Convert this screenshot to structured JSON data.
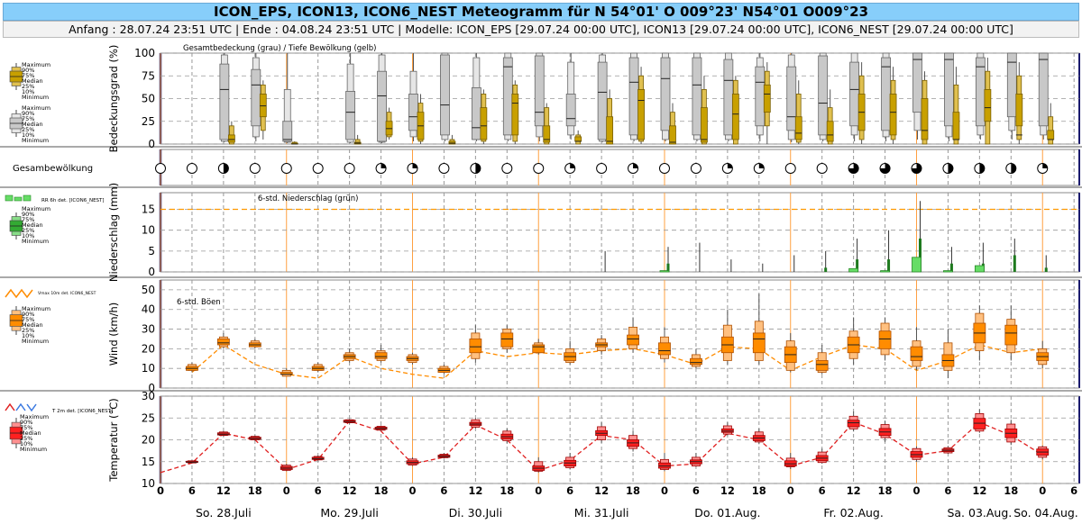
{
  "header": {
    "title": "ICON_EPS, ICON13, ICON6_NEST Meteogramm für N 54°01' O 009°23' N54°01 O009°23",
    "subtitle": "Anfang : 28.07.24 23:51 UTC | Ende : 04.08.24 23:51 UTC | Modelle: ICON_EPS [29.07.24 00:00 UTC], ICON13 [29.07.24 00:00 UTC], ICON6_NEST [29.07.24 00:00 UTC]"
  },
  "legend": {
    "box_labels": [
      "Maximum",
      "90%",
      "75%",
      "Median",
      "25%",
      "10%",
      "Minimum"
    ],
    "rr_label": "RR 6h det. [ICON6_NEST]",
    "vmax_label": "Vmax 10m det. ICON6_NEST",
    "t2m_label": "T 2m det. [ICON6_NEST]"
  },
  "time_axis": {
    "hour_ticks": [
      "0",
      "6",
      "12",
      "18",
      "0",
      "6",
      "12",
      "18",
      "0",
      "6",
      "12",
      "18",
      "0",
      "6",
      "12",
      "18",
      "0",
      "6",
      "12",
      "18",
      "0",
      "6",
      "12",
      "18",
      "0",
      "6",
      "12",
      "18",
      "0",
      "6",
      "12",
      "18"
    ],
    "days": [
      "So. 28.Juli",
      "Mo. 29.Juli",
      "Di. 30.Juli",
      "Mi. 31.Juli",
      "Do. 01.Aug.",
      "Fr. 02.Aug.",
      "Sa. 03.Aug.",
      "So. 04.Aug."
    ]
  },
  "colors": {
    "cloud_total": "#c8c8c8",
    "cloud_low": "#c8a000",
    "precip": "#33aa33",
    "wind": "#ff8c00",
    "temp": "#ff2020",
    "day_line": "#ffa040",
    "panel_border": "#1a1a6e"
  },
  "chart_data": [
    {
      "type": "box",
      "title": "Gesamtbedeckung (grau) / Tiefe Bewölkung (gelb)",
      "ylabel": "Bedeckungsgrad (%)",
      "ylim": [
        0,
        100
      ],
      "yticks": [
        0,
        25,
        50,
        75,
        100
      ],
      "x_hours": [
        12,
        18,
        24,
        36,
        42,
        48,
        54,
        60,
        66,
        72,
        78,
        84,
        90,
        96,
        102,
        108,
        114,
        120,
        126,
        132,
        138,
        144,
        150,
        156,
        162,
        168
      ],
      "series": [
        {
          "name": "Gesamtbedeckung",
          "min": [
            2,
            3,
            1,
            1,
            1,
            3,
            3,
            3,
            3,
            3,
            5,
            2,
            3,
            3,
            3,
            3,
            3,
            2,
            3,
            3,
            3,
            5,
            3,
            5,
            5,
            5
          ],
          "p10": [
            3,
            8,
            2,
            2,
            2,
            8,
            5,
            5,
            5,
            8,
            10,
            3,
            5,
            5,
            5,
            5,
            10,
            5,
            5,
            10,
            8,
            15,
            8,
            10,
            15,
            10
          ],
          "p25": [
            5,
            20,
            3,
            5,
            3,
            15,
            10,
            5,
            10,
            20,
            20,
            5,
            10,
            15,
            10,
            10,
            20,
            15,
            10,
            20,
            15,
            35,
            20,
            20,
            30,
            20
          ],
          "median": [
            60,
            65,
            5,
            35,
            53,
            30,
            43,
            18,
            85,
            35,
            28,
            57,
            68,
            72,
            65,
            70,
            68,
            30,
            45,
            60,
            85,
            93,
            93,
            85,
            90,
            93
          ],
          "p75": [
            88,
            82,
            25,
            58,
            80,
            55,
            98,
            62,
            95,
            97,
            55,
            90,
            95,
            95,
            95,
            93,
            85,
            85,
            97,
            90,
            95,
            100,
            100,
            95,
            100,
            100
          ],
          "p90": [
            98,
            95,
            60,
            88,
            98,
            80,
            100,
            95,
            100,
            100,
            90,
            98,
            100,
            100,
            100,
            100,
            95,
            98,
            100,
            100,
            100,
            100,
            100,
            100,
            100,
            100
          ],
          "max": [
            100,
            100,
            100,
            100,
            100,
            100,
            100,
            100,
            100,
            100,
            100,
            100,
            100,
            100,
            100,
            100,
            100,
            100,
            100,
            100,
            100,
            100,
            100,
            100,
            100,
            100
          ]
        },
        {
          "name": "Tiefe Bewölkung",
          "min": [
            0,
            5,
            0,
            0,
            5,
            0,
            0,
            0,
            0,
            0,
            0,
            0,
            0,
            0,
            0,
            0,
            0,
            0,
            0,
            0,
            0,
            0,
            0,
            0,
            0,
            0
          ],
          "p10": [
            0,
            15,
            0,
            0,
            8,
            3,
            0,
            3,
            3,
            0,
            0,
            0,
            3,
            0,
            0,
            0,
            20,
            2,
            0,
            5,
            5,
            0,
            0,
            0,
            5,
            0
          ],
          "p25": [
            2,
            30,
            0,
            0,
            10,
            5,
            0,
            5,
            10,
            2,
            3,
            0,
            5,
            0,
            2,
            5,
            35,
            5,
            3,
            15,
            10,
            5,
            5,
            25,
            20,
            5
          ],
          "median": [
            5,
            42,
            0,
            1,
            17,
            20,
            1,
            20,
            45,
            5,
            3,
            3,
            48,
            2,
            5,
            33,
            55,
            12,
            10,
            35,
            35,
            15,
            5,
            40,
            10,
            5
          ],
          "p75": [
            10,
            55,
            1,
            2,
            25,
            35,
            3,
            40,
            55,
            20,
            8,
            30,
            60,
            20,
            40,
            55,
            65,
            30,
            25,
            55,
            55,
            50,
            35,
            60,
            55,
            15
          ],
          "p90": [
            20,
            65,
            2,
            5,
            35,
            45,
            5,
            55,
            65,
            40,
            10,
            50,
            75,
            35,
            60,
            70,
            80,
            55,
            40,
            75,
            70,
            70,
            65,
            80,
            75,
            30
          ],
          "max": [
            25,
            70,
            3,
            10,
            40,
            55,
            10,
            60,
            70,
            45,
            15,
            60,
            85,
            45,
            75,
            75,
            90,
            70,
            60,
            90,
            85,
            80,
            85,
            95,
            90,
            45
          ]
        }
      ]
    },
    {
      "type": "symbols",
      "title": "Gesambewölkung",
      "x_hours": [
        0,
        6,
        12,
        18,
        24,
        30,
        36,
        42,
        48,
        54,
        60,
        66,
        72,
        78,
        84,
        90,
        96,
        102,
        108,
        114,
        120,
        126,
        132,
        138,
        144,
        150,
        156,
        162,
        168
      ],
      "okta": [
        0,
        0,
        4,
        0,
        0,
        0,
        0,
        2,
        2,
        0,
        4,
        0,
        0,
        2,
        0,
        2,
        0,
        0,
        2,
        2,
        0,
        0,
        6,
        6,
        6,
        4,
        4,
        4,
        2
      ]
    },
    {
      "type": "bar",
      "title": "6-std. Niederschlag (grün)",
      "ylabel": "Niederschlag (mm)",
      "ylim": [
        0,
        19
      ],
      "yticks": [
        0,
        5,
        10,
        15
      ],
      "reference_line": 15,
      "det_x_hours": [
        96,
        132,
        138,
        144,
        150,
        156
      ],
      "det_values": [
        0.3,
        0.8,
        0.3,
        3.5,
        0.3,
        1.5
      ],
      "ens_x_hours": [
        84,
        96,
        102,
        108,
        114,
        120,
        126,
        132,
        138,
        144,
        150,
        156,
        162,
        168
      ],
      "ens_max": [
        5,
        6,
        7,
        3,
        2,
        4,
        5,
        8,
        10,
        17,
        6,
        7,
        8,
        4
      ],
      "ens_p90": [
        0,
        2,
        0,
        0,
        0,
        0,
        1,
        3,
        3,
        8,
        2,
        2,
        4,
        1
      ]
    },
    {
      "type": "box",
      "title": "6-std. Böen",
      "ylabel": "Wind (km/h)",
      "ylim": [
        0,
        55
      ],
      "yticks": [
        0,
        10,
        20,
        30,
        40,
        50
      ],
      "x_hours": [
        6,
        12,
        18,
        24,
        30,
        36,
        42,
        48,
        54,
        60,
        66,
        72,
        78,
        84,
        90,
        96,
        102,
        108,
        114,
        120,
        126,
        132,
        138,
        144,
        150,
        156,
        162,
        168
      ],
      "min": [
        8,
        20,
        20,
        6,
        8,
        13,
        13,
        12,
        7,
        13,
        18,
        17,
        12,
        17,
        18,
        13,
        10,
        12,
        12,
        8,
        7,
        12,
        14,
        9,
        5,
        14,
        14,
        10
      ],
      "p10": [
        9,
        21,
        21,
        6,
        9,
        14,
        14,
        13,
        8,
        15,
        20,
        18,
        13,
        19,
        20,
        15,
        11,
        14,
        14,
        9,
        8,
        15,
        17,
        11,
        9,
        19,
        18,
        12
      ],
      "p25": [
        9,
        22,
        21,
        7,
        9,
        15,
        15,
        14,
        8,
        18,
        21,
        18,
        14,
        21,
        22,
        17,
        12,
        18,
        18,
        13,
        9,
        18,
        20,
        14,
        11,
        23,
        22,
        14
      ],
      "median": [
        10,
        23,
        22,
        7,
        10,
        16,
        16,
        15,
        9,
        21,
        25,
        21,
        16,
        22,
        25,
        19,
        13,
        22,
        25,
        17,
        12,
        22,
        25,
        16,
        14,
        28,
        28,
        16
      ],
      "p75": [
        11,
        25,
        23,
        8,
        11,
        17,
        18,
        16,
        10,
        25,
        28,
        22,
        18,
        23,
        27,
        23,
        15,
        26,
        28,
        21,
        14,
        26,
        29,
        21,
        17,
        33,
        32,
        18
      ],
      "p90": [
        12,
        26,
        24,
        9,
        12,
        18,
        19,
        17,
        11,
        28,
        30,
        23,
        20,
        25,
        31,
        26,
        17,
        32,
        34,
        24,
        18,
        29,
        33,
        24,
        23,
        38,
        35,
        20
      ],
      "max": [
        13,
        28,
        25,
        10,
        13,
        20,
        22,
        18,
        12,
        32,
        32,
        25,
        24,
        27,
        36,
        31,
        20,
        40,
        48,
        28,
        22,
        36,
        36,
        31,
        30,
        42,
        42,
        24
      ],
      "det_x_hours": [
        6,
        12,
        18,
        24,
        30,
        36,
        42,
        48,
        54,
        60,
        66,
        72,
        78,
        84,
        90,
        96,
        102,
        108,
        114,
        120,
        126,
        132,
        138,
        144,
        150,
        156,
        162,
        168
      ],
      "det_values": [
        8,
        22,
        12,
        7,
        5,
        16,
        10,
        7,
        5,
        19,
        16,
        18,
        17,
        19,
        20,
        17,
        12,
        21,
        20,
        9,
        16,
        22,
        20,
        9,
        14,
        22,
        18,
        20
      ]
    },
    {
      "type": "box",
      "ylabel": "Temperatur (°C)",
      "ylim": [
        10,
        30
      ],
      "yticks": [
        10,
        15,
        20,
        25,
        30
      ],
      "x_hours": [
        6,
        12,
        18,
        24,
        30,
        36,
        42,
        48,
        54,
        60,
        66,
        72,
        78,
        84,
        90,
        96,
        102,
        108,
        114,
        120,
        126,
        132,
        138,
        144,
        150,
        156,
        162,
        168
      ],
      "min": [
        14.6,
        20.8,
        19.8,
        12.8,
        15.2,
        23.7,
        22.0,
        14.0,
        15.7,
        22.6,
        19.2,
        12.5,
        13.2,
        19.3,
        17.3,
        12.8,
        13.8,
        21.0,
        19.0,
        13.3,
        14.5,
        21.9,
        19.5,
        15.0,
        16.8,
        21.6,
        18.8,
        15.5
      ],
      "p10": [
        14.7,
        21.0,
        20.0,
        13.0,
        15.4,
        23.9,
        22.2,
        14.2,
        15.9,
        22.9,
        19.8,
        12.8,
        13.6,
        20.0,
        18.0,
        13.2,
        14.0,
        21.3,
        19.5,
        13.8,
        14.8,
        22.5,
        20.5,
        15.5,
        17.0,
        22.0,
        19.5,
        16.0
      ],
      "p25": [
        14.8,
        21.1,
        20.1,
        13.2,
        15.5,
        24.0,
        22.4,
        14.5,
        16.0,
        23.3,
        20.2,
        13.0,
        14.0,
        21.0,
        18.5,
        13.5,
        14.5,
        21.7,
        19.8,
        14.0,
        15.2,
        23.0,
        21.0,
        16.0,
        17.3,
        22.5,
        20.5,
        16.5
      ],
      "median": [
        14.9,
        21.3,
        20.3,
        13.5,
        15.7,
        24.2,
        22.6,
        14.8,
        16.2,
        23.6,
        20.7,
        13.5,
        14.7,
        21.5,
        19.3,
        14.0,
        15.0,
        22.0,
        20.4,
        14.5,
        15.8,
        23.9,
        21.8,
        16.6,
        17.6,
        23.8,
        21.5,
        17.2
      ],
      "p75": [
        15.1,
        21.6,
        20.6,
        13.9,
        16.0,
        24.5,
        22.9,
        15.2,
        16.5,
        24.0,
        21.3,
        14.0,
        15.3,
        22.1,
        20.0,
        14.7,
        15.4,
        22.5,
        21.0,
        15.2,
        16.4,
        24.5,
        22.6,
        17.3,
        17.9,
        24.9,
        22.5,
        17.9
      ],
      "p90": [
        15.2,
        21.8,
        20.8,
        14.2,
        16.2,
        24.6,
        23.1,
        15.6,
        16.7,
        24.6,
        22.0,
        15.0,
        16.0,
        23.0,
        21.0,
        15.5,
        16.0,
        23.2,
        21.8,
        15.8,
        17.2,
        25.4,
        23.5,
        18.0,
        18.2,
        26.0,
        23.6,
        18.4
      ],
      "max": [
        15.3,
        22.0,
        21.0,
        14.5,
        16.4,
        24.8,
        23.3,
        16.0,
        17.0,
        25.0,
        22.6,
        16.0,
        17.0,
        24.0,
        22.0,
        17.0,
        17.0,
        24.0,
        22.6,
        17.0,
        18.0,
        26.5,
        24.4,
        18.5,
        18.6,
        27.0,
        24.6,
        18.7
      ],
      "det_x_hours": [
        0,
        6,
        12,
        18,
        24,
        30,
        36,
        42,
        48,
        54,
        60,
        66,
        72,
        78,
        84,
        90,
        96,
        102,
        108,
        114,
        120,
        126,
        132,
        138,
        144,
        150,
        156,
        162,
        168
      ],
      "det_values": [
        12.5,
        14.7,
        21.5,
        20.0,
        13.2,
        15.5,
        24.3,
        22.0,
        14.5,
        16.0,
        23.4,
        20.0,
        13.0,
        15.3,
        21.0,
        20.0,
        14.0,
        14.5,
        21.5,
        20.0,
        14.0,
        16.0,
        24.0,
        21.3,
        16.5,
        17.5,
        24.0,
        21.0,
        16.5
      ]
    }
  ]
}
